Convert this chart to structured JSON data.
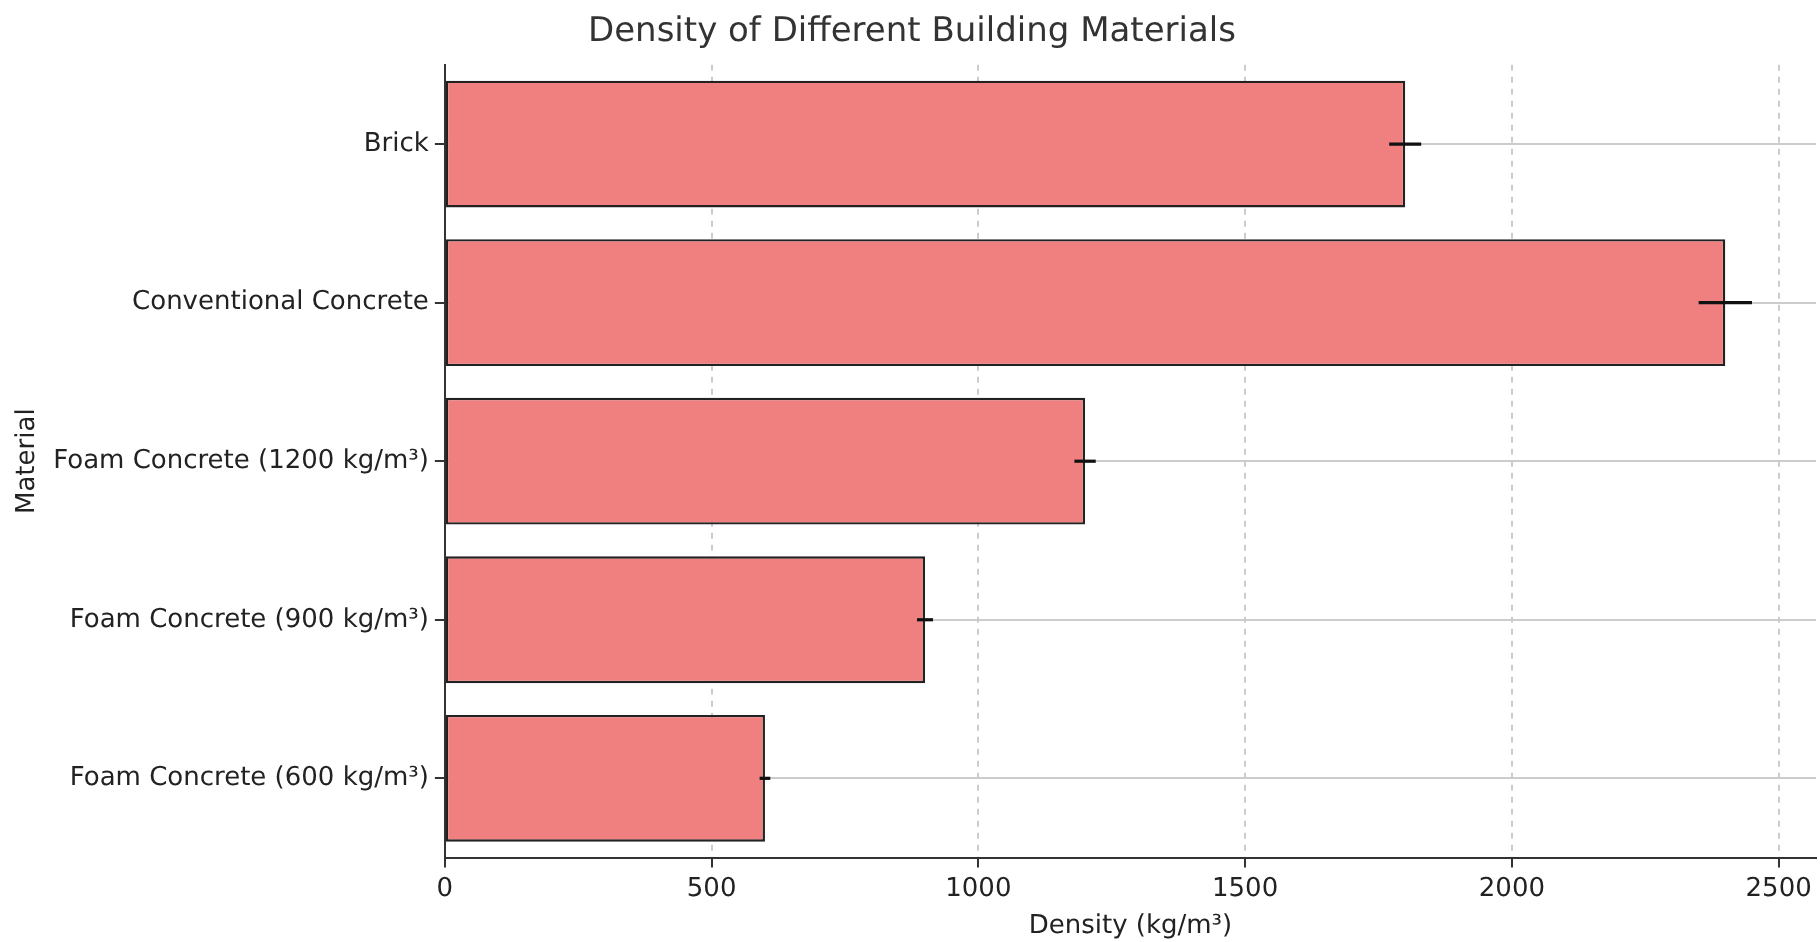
{
  "chart_data": {
    "type": "bar",
    "orientation": "horizontal",
    "title": "Density of Different Building Materials",
    "xlabel": "Density (kg/m³)",
    "ylabel": "Material",
    "categories": [
      "Brick",
      "Conventional Concrete",
      "Foam Concrete (1200 kg/m³)",
      "Foam Concrete (900 kg/m³)",
      "Foam Concrete (600 kg/m³)"
    ],
    "values": [
      1800,
      2400,
      1200,
      900,
      600
    ],
    "errors": [
      30,
      50,
      20,
      15,
      10
    ],
    "color": "#f08080",
    "xlim": [
      0,
      2570
    ],
    "xticks": [
      0,
      500,
      1000,
      1500,
      2000,
      2500
    ],
    "grid": true
  }
}
